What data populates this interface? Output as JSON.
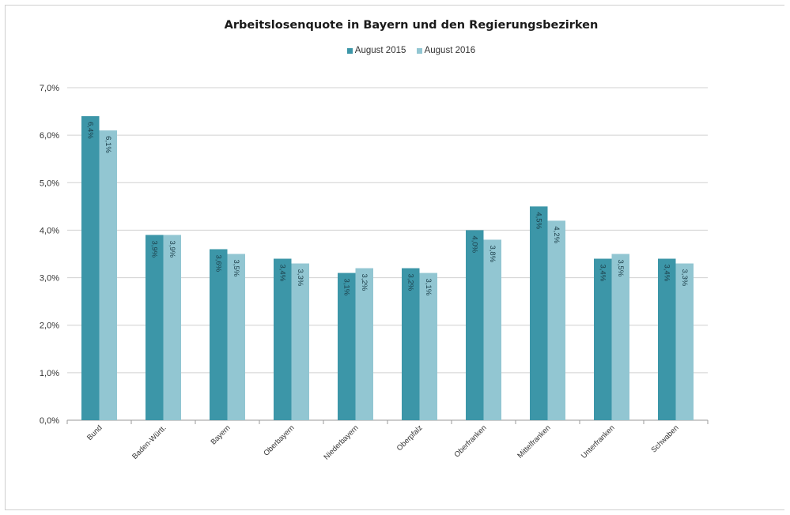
{
  "chart_data": {
    "type": "bar",
    "title": "Arbeitslosenquote in Bayern und den Regierungsbezirken",
    "xlabel": "",
    "ylabel": "",
    "ylim": [
      0,
      7
    ],
    "y_ticks": [
      "0,0%",
      "1,0%",
      "2,0%",
      "3,0%",
      "4,0%",
      "5,0%",
      "6,0%",
      "7,0%"
    ],
    "grid": true,
    "legend_position": "top",
    "categories": [
      "Bund",
      "Baden-Württ.",
      "Bayern",
      "Oberbayern",
      "Niederbayern",
      "Oberpfalz",
      "Oberfranken",
      "Mittelfranken",
      "Unterfranken",
      "Schwaben"
    ],
    "series": [
      {
        "name": "August 2015",
        "color": "#3c96a8",
        "values": [
          6.4,
          3.9,
          3.6,
          3.4,
          3.1,
          3.2,
          4.0,
          4.5,
          3.4,
          3.4
        ],
        "labels": [
          "6,4%",
          "3,9%",
          "3,6%",
          "3,4%",
          "3,1%",
          "3,2%",
          "4,0%",
          "4,5%",
          "3,4%",
          "3,4%"
        ]
      },
      {
        "name": "August 2016",
        "color": "#92c6d2",
        "values": [
          6.1,
          3.9,
          3.5,
          3.3,
          3.2,
          3.1,
          3.8,
          4.2,
          3.5,
          3.3
        ],
        "labels": [
          "6,1%",
          "3,9%",
          "3,5%",
          "3,3%",
          "3,2%",
          "3,1%",
          "3,8%",
          "4,2%",
          "3,5%",
          "3,3%"
        ]
      }
    ]
  }
}
